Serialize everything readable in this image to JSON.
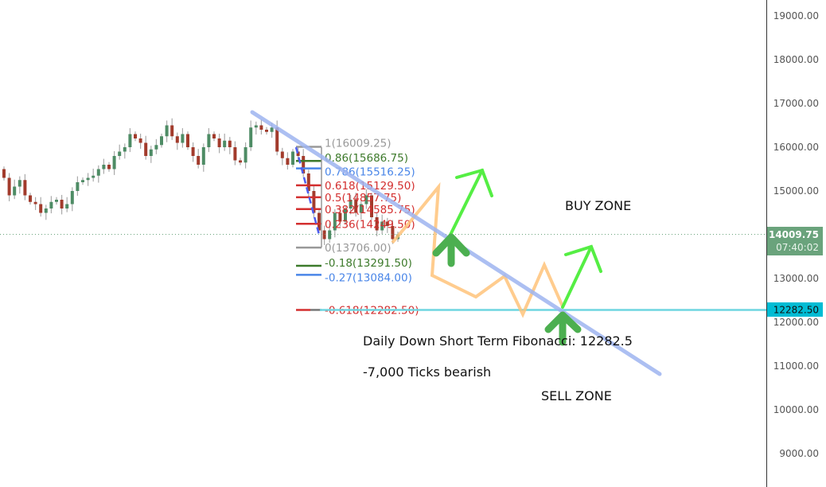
{
  "chart_data": {
    "type": "candlestick",
    "y_axis": {
      "ticks": [
        19000,
        18000,
        17000,
        16000,
        15000,
        14000,
        13000,
        12000,
        11000,
        10000,
        9000
      ],
      "tick_labels": [
        "19000.00",
        "18000.00",
        "17000.00",
        "16000.00",
        "15000.00",
        "14000.00",
        "13000.00",
        "12000.00",
        "11000.00",
        "10000.00",
        "9000.00"
      ],
      "ylim": [
        8800,
        19400
      ]
    },
    "grid": false,
    "closes": [
      15300,
      14900,
      15100,
      15250,
      14900,
      14750,
      14700,
      14500,
      14600,
      14750,
      14800,
      14600,
      14700,
      15000,
      15200,
      15250,
      15300,
      15350,
      15500,
      15600,
      15500,
      15800,
      15900,
      16000,
      16300,
      16200,
      16100,
      15800,
      15950,
      16050,
      16250,
      16500,
      16250,
      16100,
      16300,
      16000,
      15800,
      15600,
      16000,
      16300,
      16200,
      16000,
      16150,
      16000,
      15700,
      15650,
      16000,
      16450,
      16500,
      16400,
      16350,
      16450,
      15900,
      15750,
      15600,
      15900,
      15800,
      15400,
      15000,
      14500,
      14100,
      13900,
      14100,
      14500,
      14300,
      14600,
      14800,
      14500,
      14700,
      14900,
      14400,
      14100,
      14300,
      14200,
      13900,
      14009.75
    ],
    "first_open": 15500,
    "up_color": "#4e8c65",
    "down_color": "#a23b2c",
    "last_price": {
      "value": "14009.75",
      "countdown": "07:40:02",
      "color": "#6aa37c"
    },
    "target_price": {
      "value": "12282.50",
      "color": "#00bcd4"
    },
    "fibonacci": [
      {
        "label": "1(16009.25)",
        "price": 16009.25,
        "color": "#999999"
      },
      {
        "label": "0.86(15686.75)",
        "price": 15686.75,
        "color": "#3d7a2b"
      },
      {
        "label": "0.786(15516.25)",
        "price": 15516.25,
        "color": "#4a86e8"
      },
      {
        "label": "0.618(15129.50)",
        "price": 15129.5,
        "color": "#d32f2f"
      },
      {
        "label": "0.5(14857.75)",
        "price": 14857.75,
        "color": "#d32f2f"
      },
      {
        "label": "0.382(14585.75)",
        "price": 14585.75,
        "color": "#d32f2f"
      },
      {
        "label": "0.236(14249.50)",
        "price": 14249.5,
        "color": "#d32f2f"
      },
      {
        "label": "0(13706.00)",
        "price": 13706.0,
        "color": "#999999"
      },
      {
        "label": "-0.18(13291.50)",
        "price": 13291.5,
        "color": "#3d7a2b"
      },
      {
        "label": "-0.27(13084.00)",
        "price": 13084.0,
        "color": "#4a86e8"
      },
      {
        "label": "-0.618(12282.50)",
        "price": 12282.5,
        "color": "#d32f2f"
      }
    ],
    "annotations": {
      "buy_zone": "BUY ZONE",
      "sell_zone": "SELL ZONE",
      "fib_note": "Daily Down Short Term Fibonacci: 12282.5",
      "ticks_note": "-7,000 Ticks bearish"
    },
    "trendline_color": "#9db4f0",
    "projection_color": "#ffc37a",
    "arrow_color": "#55ee44",
    "big_arrow_color": "#4caf50"
  }
}
